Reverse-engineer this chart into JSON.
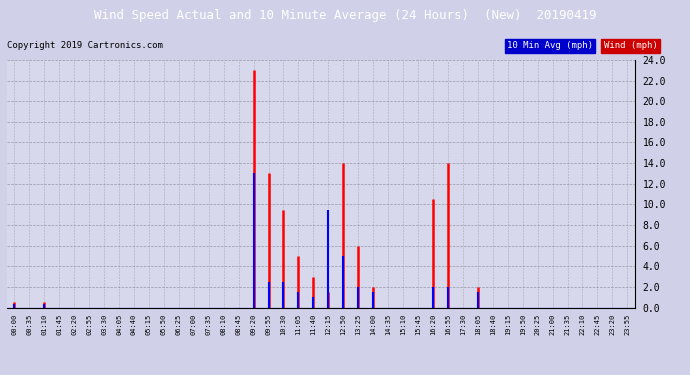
{
  "title": "Wind Speed Actual and 10 Minute Average (24 Hours)  (New)  20190419",
  "copyright": "Copyright 2019 Cartronics.com",
  "legend_label_avg": "10 Min Avg (mph)",
  "legend_label_wind": "Wind (mph)",
  "legend_color_avg": "#0000cc",
  "legend_color_wind": "#cc0000",
  "ylim": [
    0,
    24
  ],
  "yticks": [
    0.0,
    2.0,
    4.0,
    6.0,
    8.0,
    10.0,
    12.0,
    14.0,
    16.0,
    18.0,
    20.0,
    22.0,
    24.0
  ],
  "bg_color": "#d0d0e8",
  "plot_bg_color": "#d8d8ec",
  "grid_color": "#888899",
  "title_bg_color": "#000000",
  "title_color": "#ffffff",
  "time_labels": [
    "00:00",
    "00:35",
    "01:10",
    "01:45",
    "02:20",
    "02:55",
    "03:30",
    "04:05",
    "04:40",
    "05:15",
    "05:50",
    "06:25",
    "07:00",
    "07:35",
    "08:10",
    "08:45",
    "09:20",
    "09:55",
    "10:30",
    "11:05",
    "11:40",
    "12:15",
    "12:50",
    "13:25",
    "14:00",
    "14:35",
    "15:10",
    "15:45",
    "16:20",
    "16:55",
    "17:30",
    "18:05",
    "18:40",
    "19:15",
    "19:50",
    "20:25",
    "21:00",
    "21:35",
    "22:10",
    "22:45",
    "23:20",
    "23:55"
  ],
  "wind_actual": [
    0.5,
    0.0,
    0.5,
    0.0,
    0.0,
    0.0,
    0.0,
    0.0,
    0.0,
    0.0,
    0.0,
    0.0,
    0.0,
    0.0,
    0.0,
    0.0,
    23.0,
    13.0,
    9.5,
    5.0,
    3.0,
    1.5,
    14.0,
    6.0,
    2.0,
    0.0,
    0.0,
    0.0,
    10.5,
    14.0,
    0.0,
    2.0,
    0.0,
    0.0,
    0.0,
    0.0,
    0.0,
    0.0,
    0.0,
    0.0,
    0.0,
    0.0
  ],
  "wind_avg": [
    0.3,
    0.0,
    0.3,
    0.0,
    0.0,
    0.0,
    0.0,
    0.0,
    0.0,
    0.0,
    0.0,
    0.0,
    0.0,
    0.0,
    0.0,
    0.0,
    13.0,
    2.5,
    2.5,
    1.5,
    1.0,
    9.5,
    5.0,
    2.0,
    1.5,
    0.0,
    0.0,
    0.0,
    2.0,
    2.0,
    0.0,
    1.5,
    0.0,
    0.0,
    0.0,
    0.0,
    0.0,
    0.0,
    0.0,
    0.0,
    0.0,
    0.0
  ]
}
